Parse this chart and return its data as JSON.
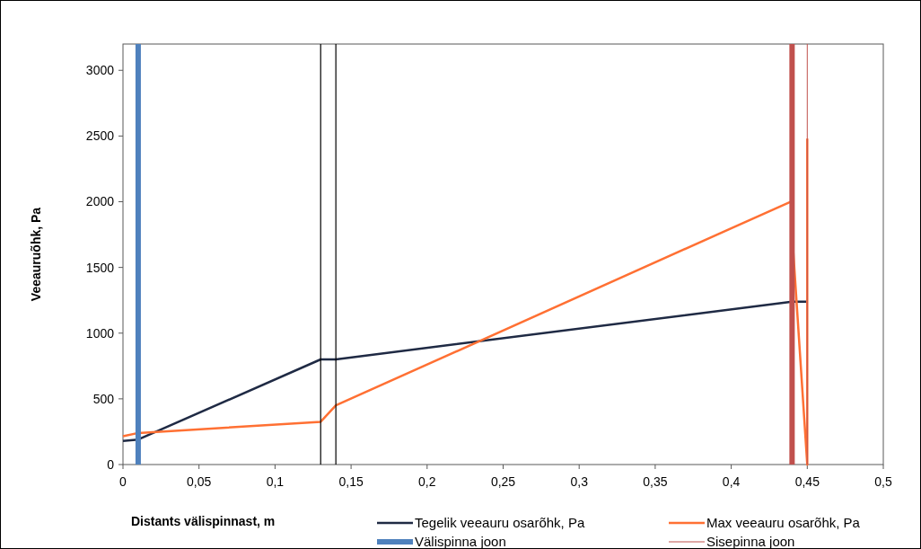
{
  "chart_data": {
    "type": "line",
    "xlabel": "Distants välispinnast, m",
    "ylabel": "Veeauruõhk, Pa",
    "xlim": [
      0,
      0.5
    ],
    "ylim": [
      0,
      3200
    ],
    "xticks": [
      0,
      {
        "value": 0.05,
        "label": "0,05"
      },
      {
        "value": 0.1,
        "label": "0,1"
      },
      {
        "value": 0.15,
        "label": "0,15"
      },
      {
        "value": 0.2,
        "label": "0,2"
      },
      {
        "value": 0.25,
        "label": "0,25"
      },
      {
        "value": 0.3,
        "label": "0,3"
      },
      {
        "value": 0.35,
        "label": "0,35"
      },
      {
        "value": 0.4,
        "label": "0,4"
      },
      {
        "value": 0.45,
        "label": "0,45"
      },
      {
        "value": 0.5,
        "label": "0,5"
      }
    ],
    "yticks": [
      0,
      500,
      1000,
      1500,
      2000,
      2500,
      3000
    ],
    "grid": false,
    "legend": "bottom",
    "marker": "none",
    "series": [
      {
        "name": "Tegelik veeauru osarõhk, Pa",
        "color": "#1f2a44",
        "x": [
          0,
          0.01,
          0.13,
          0.14,
          0.44,
          0.45
        ],
        "values": [
          180,
          190,
          800,
          800,
          1240,
          1240
        ]
      },
      {
        "name": "Max veeauru osarõhk, Pa",
        "color": "#ff7033",
        "x": [
          0,
          0.01,
          0.13,
          0.14,
          0.44,
          0.44,
          0.45,
          0.45
        ],
        "values": [
          215,
          240,
          325,
          450,
          2005,
          1760,
          0,
          2480
        ]
      },
      {
        "name": "Välispinna joon",
        "color": "#4f81bd",
        "x": [
          0.01,
          0.01
        ],
        "values": [
          0,
          3200
        ]
      },
      {
        "name": "Sisepinna joon",
        "color": "#c0504d",
        "x": [
          0.45,
          0.45
        ],
        "values": [
          0,
          3200
        ]
      },
      {
        "color": "#000000",
        "x": [
          0.13,
          0.13
        ],
        "values": [
          0,
          3200
        ]
      },
      {
        "color": "#000000",
        "x": [
          0.14,
          0.14
        ],
        "values": [
          0,
          3200
        ]
      },
      {
        "color": "#c0504d",
        "x": [
          0.44,
          0.44
        ],
        "values": [
          0,
          3200
        ]
      }
    ]
  }
}
